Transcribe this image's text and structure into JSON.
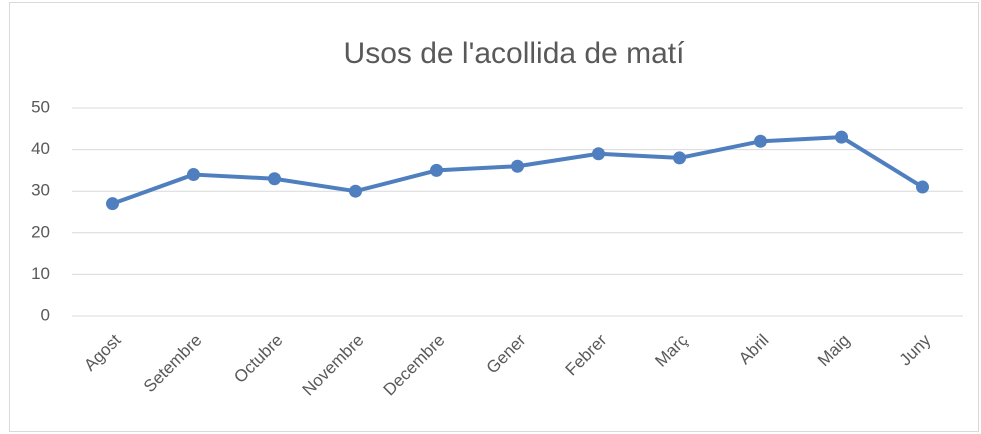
{
  "chart_data": {
    "type": "line",
    "title": "Usos de l'acollida de matí",
    "categories": [
      "Agost",
      "Setembre",
      "Octubre",
      "Novembre",
      "Decembre",
      "Gener",
      "Febrer",
      "Març",
      "Abril",
      "Maig",
      "Juny"
    ],
    "values": [
      27,
      34,
      33,
      30,
      35,
      36,
      39,
      38,
      42,
      43,
      31
    ],
    "color": "#4f7fbf",
    "ylim": [
      0,
      50
    ],
    "yticks": [
      0,
      10,
      20,
      30,
      40,
      50
    ],
    "grid": true
  }
}
